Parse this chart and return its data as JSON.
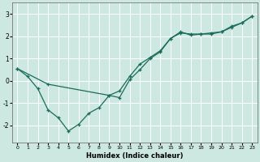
{
  "xlabel": "Humidex (Indice chaleur)",
  "bg_color": "#cce8e0",
  "grid_color": "#ffffff",
  "line_color": "#1a6b5a",
  "line1_x": [
    0,
    1,
    2,
    3,
    4,
    5,
    6,
    7,
    8,
    9,
    10,
    11,
    12,
    13,
    14,
    15,
    16,
    17,
    18,
    19,
    20,
    21,
    22,
    23
  ],
  "line1_y": [
    0.55,
    0.2,
    -0.35,
    -1.3,
    -1.65,
    -2.25,
    -1.95,
    -1.45,
    -1.2,
    -0.65,
    -0.75,
    0.05,
    0.5,
    1.0,
    1.3,
    1.9,
    2.15,
    2.1,
    2.1,
    2.1,
    2.2,
    2.4,
    2.6,
    2.9
  ],
  "line2_x": [
    0,
    3,
    9,
    10,
    11,
    12,
    13,
    14,
    15,
    16,
    17,
    18,
    19,
    20,
    21,
    22,
    23
  ],
  "line2_y": [
    0.55,
    -0.15,
    -0.65,
    -0.45,
    0.2,
    0.75,
    1.05,
    1.35,
    1.9,
    2.2,
    2.05,
    2.1,
    2.15,
    2.2,
    2.45,
    2.6,
    2.9
  ],
  "xlim": [
    -0.5,
    23.5
  ],
  "ylim": [
    -2.75,
    3.5
  ],
  "yticks": [
    -2,
    -1,
    0,
    1,
    2,
    3
  ],
  "xticks": [
    0,
    1,
    2,
    3,
    4,
    5,
    6,
    7,
    8,
    9,
    10,
    11,
    12,
    13,
    14,
    15,
    16,
    17,
    18,
    19,
    20,
    21,
    22,
    23
  ],
  "figsize": [
    3.2,
    2.0
  ],
  "dpi": 100
}
